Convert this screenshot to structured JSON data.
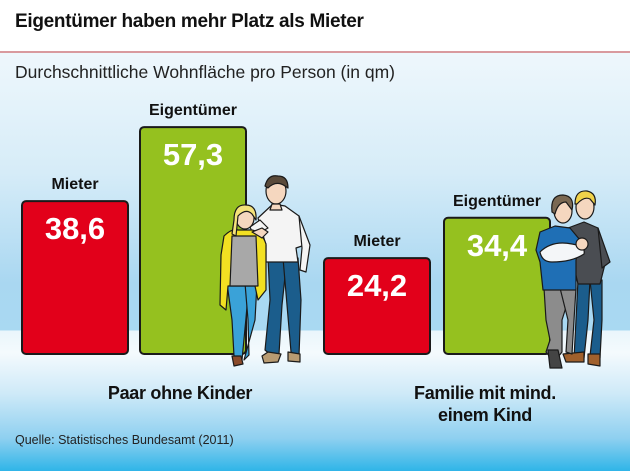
{
  "header": {
    "title": "Eigentümer haben mehr Platz als Mieter"
  },
  "chart_data": {
    "type": "bar",
    "title": "Eigentümer haben mehr Platz als Mieter",
    "subtitle": "Durchschnittliche Wohnfläche pro Person (in qm)",
    "xlabel": "",
    "ylabel": "Wohnfläche pro Person (qm)",
    "ylim": [
      0,
      60
    ],
    "grid": false,
    "categories": [
      "Paar ohne Kinder",
      "Familie mit mind. einem Kind"
    ],
    "series": [
      {
        "name": "Mieter",
        "values": [
          38.6,
          24.2
        ],
        "labels": [
          "38,6",
          "24,2"
        ],
        "color": "#e2001a"
      },
      {
        "name": "Eigentümer",
        "values": [
          57.3,
          34.4
        ],
        "labels": [
          "57,3",
          "34,4"
        ],
        "color": "#95c11f"
      }
    ],
    "category_labels": [
      "Paar ohne Kinder",
      "Familie mit mind.",
      "einem Kind"
    ],
    "source": "Quelle: Statistisches Bundesamt (2011)"
  },
  "illustrations": [
    {
      "name": "couple-illustration"
    },
    {
      "name": "family-illustration"
    }
  ]
}
